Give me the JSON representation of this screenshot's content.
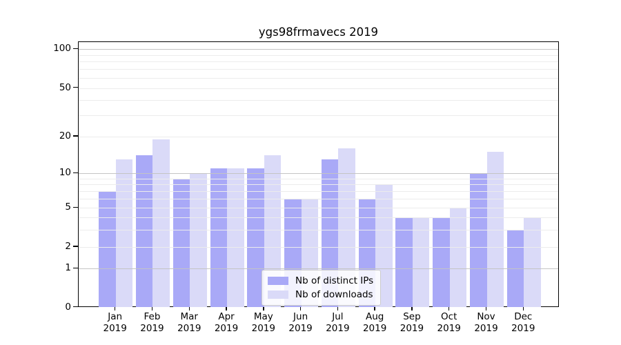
{
  "title": "ygs98frmavecs 2019",
  "chart_data": {
    "type": "bar",
    "title": "ygs98frmavecs 2019",
    "categories": [
      "Jan 2019",
      "Feb 2019",
      "Mar 2019",
      "Apr 2019",
      "May 2019",
      "Jun 2019",
      "Jul 2019",
      "Aug 2019",
      "Sep 2019",
      "Oct 2019",
      "Nov 2019",
      "Dec 2019"
    ],
    "series": [
      {
        "name": "Nb of distinct IPs",
        "color": "#a9a9f7",
        "values": [
          7,
          14,
          9,
          11,
          11,
          6,
          13,
          6,
          4,
          4,
          10,
          3
        ]
      },
      {
        "name": "Nb of downloads",
        "color": "#dadaf8",
        "values": [
          13,
          19,
          10,
          11,
          14,
          6,
          16,
          8,
          4,
          5,
          15,
          4
        ]
      }
    ],
    "xlabel": "",
    "ylabel": "",
    "yscale": "symlog",
    "ylim": [
      0,
      110
    ],
    "ytick_labels": [
      "0",
      "1",
      "2",
      "5",
      "10",
      "20",
      "50",
      "100"
    ],
    "ytick_values": [
      0,
      1,
      2,
      5,
      10,
      20,
      50,
      100
    ],
    "grid": true,
    "minor_grid_values": [
      2,
      3,
      4,
      5,
      6,
      7,
      8,
      9,
      20,
      30,
      40,
      50,
      60,
      70,
      80,
      90
    ],
    "major_grid_values": [
      1,
      10,
      100
    ],
    "legend": {
      "position": "lower center",
      "entries": [
        "Nb of distinct IPs",
        "Nb of downloads"
      ]
    },
    "colors": {
      "bar_ips": "#a9a9f7",
      "bar_downloads": "#dadaf8",
      "minor_grid": "#ececec",
      "major_grid": "#c4c4c4",
      "axis": "#000000",
      "background": "#ffffff"
    }
  }
}
